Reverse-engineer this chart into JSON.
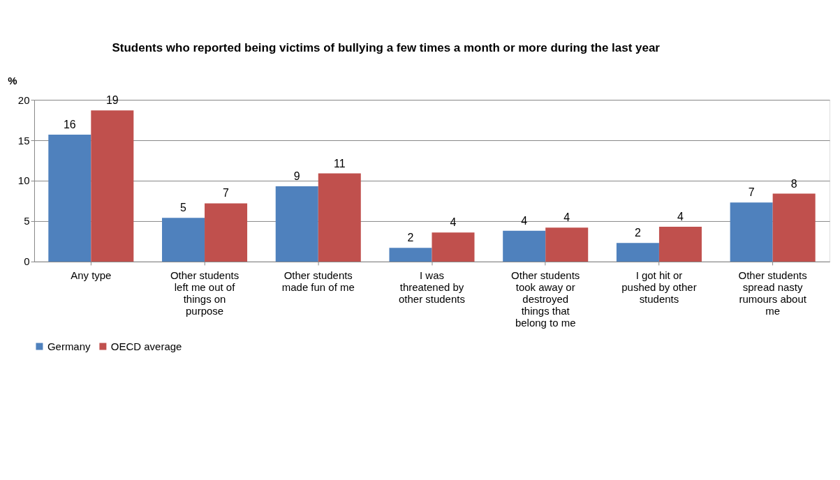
{
  "chart_data": {
    "type": "bar",
    "title": "Students who reported being victims of bullying a few times a month or more during the last year",
    "ylabel": "%",
    "categories": [
      "Any type",
      "Other students left me out of things on purpose",
      "Other students made fun of me",
      "I was threatened by other students",
      "Other students took away or destroyed things that belong to me",
      "I got hit or pushed by other students",
      "Other students spread nasty rumours about me"
    ],
    "series": [
      {
        "name": "Germany",
        "color": "#4f81bd",
        "values": [
          15.7,
          5.4,
          9.3,
          1.7,
          3.8,
          2.3,
          7.3
        ],
        "value_labels": [
          "16",
          "5",
          "9",
          "2",
          "4",
          "2",
          "7"
        ]
      },
      {
        "name": "OECD average",
        "color": "#c0504d",
        "values": [
          18.7,
          7.2,
          10.9,
          3.6,
          4.2,
          4.3,
          8.4
        ],
        "value_labels": [
          "19",
          "7",
          "11",
          "4",
          "4",
          "4",
          "8"
        ]
      }
    ],
    "ylim": [
      0,
      20
    ],
    "yticks": [
      0,
      5,
      10,
      15,
      20
    ],
    "grid": "y",
    "legend": "bottom"
  }
}
